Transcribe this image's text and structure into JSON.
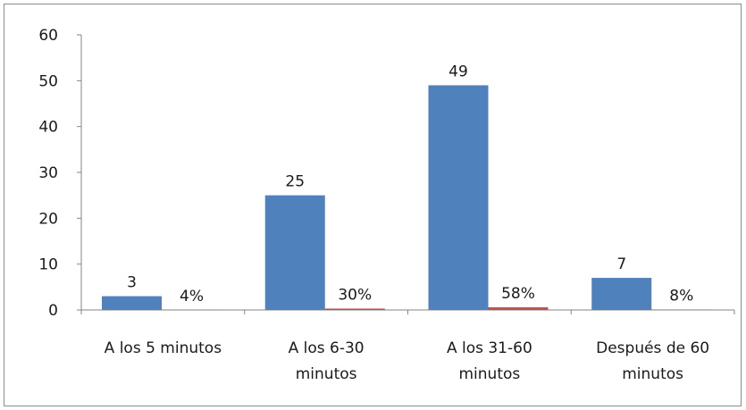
{
  "chart_data": {
    "type": "bar",
    "categories": [
      [
        "A los 5 minutos"
      ],
      [
        "A los 6-30",
        "minutos"
      ],
      [
        "A los 31-60",
        "minutos"
      ],
      [
        "Después de 60",
        "minutos"
      ]
    ],
    "series": [
      {
        "values": [
          3,
          25,
          49,
          7
        ],
        "labels": [
          "3",
          "25",
          "49",
          "7"
        ],
        "color": "#4f81bd"
      },
      {
        "values": [
          0.04,
          0.3,
          0.58,
          0.08
        ],
        "labels": [
          "4%",
          "30%",
          "58%",
          "8%"
        ],
        "color": "#c0504d"
      }
    ],
    "y_ticks": [
      "0",
      "10",
      "20",
      "30",
      "40",
      "50",
      "60"
    ],
    "ylim": [
      0,
      60
    ],
    "grid": false,
    "legend": "none"
  }
}
